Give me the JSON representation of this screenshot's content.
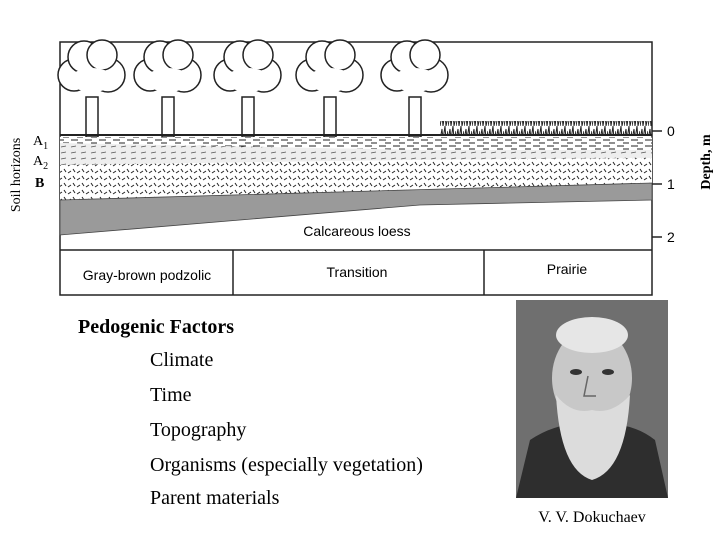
{
  "diagram": {
    "axis_left": "Soil horizons",
    "horizons": [
      {
        "letter": "A",
        "sub": "1"
      },
      {
        "letter": "A",
        "sub": "2"
      },
      {
        "letter": "B",
        "sub": ""
      }
    ],
    "axis_right": "Depth, m",
    "depth_ticks": [
      "0",
      "1",
      "2"
    ],
    "layer_label": "Calcareous loess",
    "zones": [
      "Gray-brown podzolic",
      "Transition",
      "Prairie"
    ]
  },
  "factors": {
    "title": "Pedogenic Factors",
    "items": [
      "Climate",
      "Time",
      "Topography",
      "Organisms (especially vegetation)",
      "Parent materials"
    ]
  },
  "portrait": {
    "caption": "V. V. Dokuchaev"
  }
}
